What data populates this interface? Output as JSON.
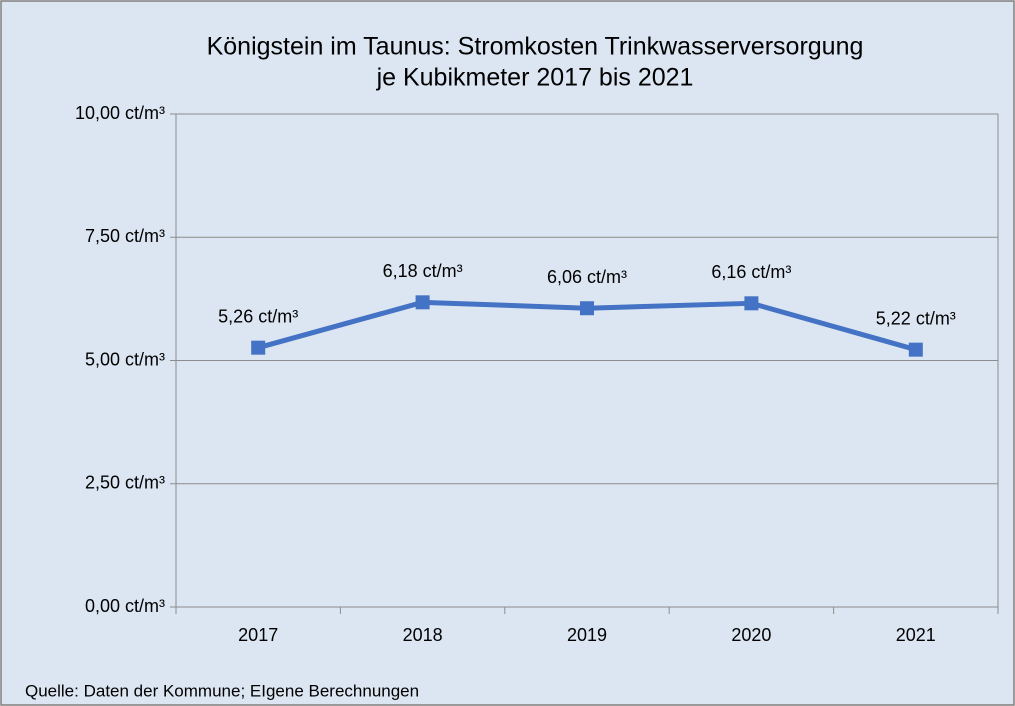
{
  "chart_data": {
    "type": "line",
    "title": [
      "Königstein im Taunus: Stromkosten Trinkwasserversorgung",
      "je Kubikmeter 2017 bis 2021"
    ],
    "categories": [
      "2017",
      "2018",
      "2019",
      "2020",
      "2021"
    ],
    "values": [
      5.26,
      6.18,
      6.06,
      6.16,
      5.22
    ],
    "value_labels": [
      "5,26 ct/m³",
      "6,18 ct/m³",
      "6,06 ct/m³",
      "6,16 ct/m³",
      "5,22 ct/m³"
    ],
    "color": "#4472c4",
    "ylim": [
      0,
      10
    ],
    "yticks": [
      {
        "value": 0,
        "label": "0,00 ct/m³"
      },
      {
        "value": 2.5,
        "label": "2,50 ct/m³"
      },
      {
        "value": 5,
        "label": "5,00 ct/m³"
      },
      {
        "value": 7.5,
        "label": "7,50 ct/m³"
      },
      {
        "value": 10,
        "label": "10,00 ct/m³"
      }
    ],
    "grid": true,
    "source": "Quelle: Daten der Kommune; EIgene Berechnungen"
  }
}
